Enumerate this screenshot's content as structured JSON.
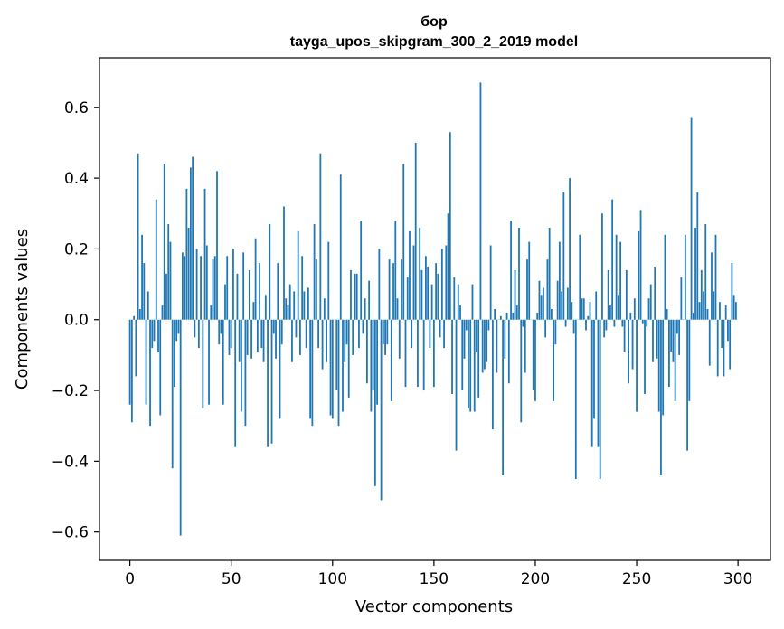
{
  "chart_data": {
    "type": "bar",
    "title": "бор",
    "subtitle": "tayga_upos_skipgram_300_2_2019 model",
    "xlabel": "Vector components",
    "ylabel": "Components values",
    "xlim": [
      -15,
      316
    ],
    "ylim": [
      -0.68,
      0.74
    ],
    "xticks": [
      0,
      50,
      100,
      150,
      200,
      250,
      300
    ],
    "xtick_labels": [
      "0",
      "50",
      "100",
      "150",
      "200",
      "250",
      "300"
    ],
    "yticks": [
      -0.6,
      -0.4,
      -0.2,
      0.0,
      0.2,
      0.4,
      0.6
    ],
    "ytick_labels": [
      "−0.6",
      "−0.4",
      "−0.2",
      "0.0",
      "0.2",
      "0.4",
      "0.6"
    ],
    "grid": false,
    "bar_color": "#1f77b4",
    "series": [
      {
        "values": [
          -0.24,
          -0.29,
          0.01,
          -0.16,
          0.47,
          0.03,
          0.24,
          0.16,
          -0.24,
          0.08,
          -0.3,
          -0.08,
          -0.06,
          0.34,
          -0.09,
          -0.27,
          0.04,
          0.44,
          0.13,
          0.27,
          0.22,
          -0.42,
          -0.19,
          -0.06,
          -0.04,
          -0.61,
          0.19,
          0.18,
          0.37,
          0.26,
          0.43,
          0.46,
          -0.05,
          0.2,
          -0.08,
          0.18,
          -0.25,
          0.37,
          0.21,
          -0.24,
          0.04,
          0.17,
          0.18,
          0.42,
          -0.07,
          -0.04,
          -0.24,
          0.1,
          0.18,
          -0.1,
          -0.08,
          0.2,
          -0.36,
          0.13,
          -0.12,
          -0.26,
          0.19,
          -0.3,
          -0.1,
          0.14,
          -0.11,
          0.05,
          0.23,
          -0.09,
          0.16,
          -0.08,
          -0.12,
          0.07,
          -0.36,
          0.27,
          -0.35,
          -0.04,
          -0.11,
          0.16,
          -0.28,
          -0.07,
          0.32,
          0.06,
          0.04,
          0.1,
          -0.12,
          0.08,
          -0.05,
          0.25,
          -0.1,
          0.18,
          0.08,
          -0.08,
          0.09,
          -0.28,
          -0.3,
          0.27,
          0.17,
          -0.08,
          0.47,
          -0.14,
          0.06,
          -0.12,
          0.22,
          -0.27,
          -0.28,
          0.0,
          -0.2,
          -0.3,
          0.41,
          -0.26,
          -0.12,
          -0.07,
          -0.22,
          0.14,
          -0.1,
          0.13,
          0.13,
          -0.08,
          0.28,
          -0.04,
          0.06,
          -0.18,
          0.11,
          -0.26,
          -0.2,
          -0.47,
          -0.24,
          0.2,
          -0.51,
          -0.07,
          -0.1,
          -0.07,
          0.17,
          -0.23,
          0.16,
          0.28,
          0.06,
          -0.11,
          0.17,
          0.44,
          -0.19,
          0.12,
          0.25,
          -0.08,
          0.21,
          0.5,
          -0.19,
          0.26,
          0.14,
          -0.2,
          0.18,
          0.15,
          -0.08,
          0.1,
          -0.19,
          0.16,
          0.13,
          -0.05,
          0.2,
          -0.08,
          0.21,
          0.3,
          0.53,
          -0.21,
          0.12,
          -0.37,
          0.1,
          0.04,
          -0.2,
          -0.11,
          -0.03,
          -0.25,
          -0.26,
          0.1,
          -0.26,
          -0.09,
          -0.22,
          0.67,
          -0.15,
          -0.14,
          -0.12,
          -0.03,
          0.21,
          -0.31,
          0.03,
          -0.15,
          0.0,
          0.01,
          -0.44,
          -0.11,
          0.02,
          -0.18,
          0.28,
          0.02,
          0.14,
          0.04,
          0.26,
          -0.29,
          -0.02,
          -0.15,
          0.17,
          0.22,
          0.0,
          -0.2,
          -0.23,
          0.02,
          0.11,
          0.07,
          0.09,
          -0.05,
          0.17,
          0.26,
          0.03,
          -0.23,
          -0.07,
          0.11,
          0.22,
          0.08,
          0.36,
          -0.02,
          0.09,
          0.4,
          0.05,
          -0.04,
          -0.45,
          0.0,
          0.24,
          0.06,
          0.06,
          -0.03,
          0.01,
          0.05,
          -0.36,
          -0.28,
          0.08,
          -0.36,
          -0.45,
          0.3,
          -0.05,
          -0.03,
          0.14,
          0.04,
          0.34,
          -0.02,
          0.24,
          0.07,
          0.22,
          -0.02,
          -0.09,
          0.14,
          -0.18,
          0.02,
          -0.14,
          0.06,
          -0.26,
          0.25,
          0.31,
          -0.01,
          -0.21,
          -0.02,
          0.06,
          0.1,
          -0.12,
          0.15,
          -0.11,
          -0.26,
          -0.44,
          -0.27,
          0.24,
          0.03,
          -0.19,
          -0.09,
          -0.12,
          -0.23,
          -0.04,
          -0.1,
          0.12,
          0.0,
          0.24,
          -0.37,
          -0.23,
          0.57,
          0.02,
          0.26,
          0.36,
          0.05,
          0.14,
          0.08,
          0.27,
          0.03,
          -0.13,
          0.19,
          0.08,
          0.24,
          -0.16,
          0.05,
          -0.08,
          -0.16,
          0.04,
          -0.06,
          -0.14,
          0.16,
          0.07,
          0.05
        ]
      }
    ]
  }
}
